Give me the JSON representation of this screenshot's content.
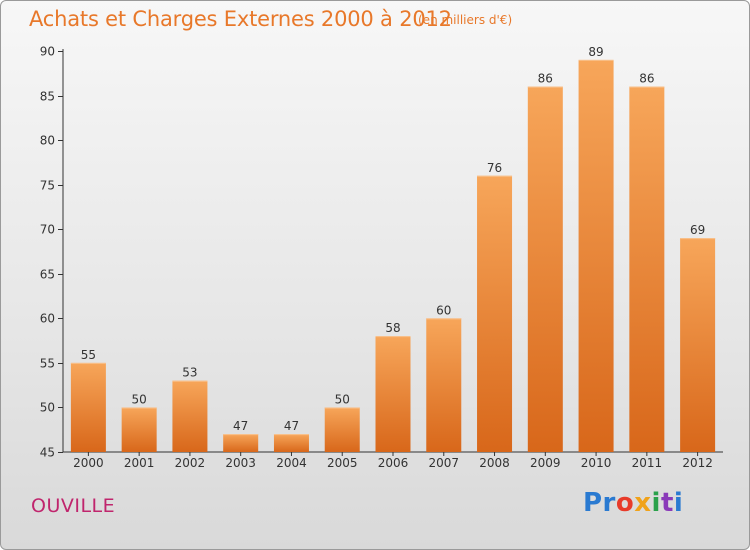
{
  "header": {
    "title": "Achats et Charges Externes 2000 à 2012",
    "unit": "(en milliers d'€)"
  },
  "footer": {
    "commune": "OUVILLE",
    "logo_parts": [
      "Pr",
      "o",
      "x",
      "i",
      "t",
      "i"
    ]
  },
  "colors": {
    "accent": "#e8782a",
    "commune": "#c0256d",
    "bar_top": "#f7a65a",
    "bar_bottom": "#d8671a"
  },
  "chart_data": {
    "type": "bar",
    "title": "Achats et Charges Externes 2000 à 2012",
    "subtitle": "(en milliers d'€)",
    "categories": [
      "2000",
      "2001",
      "2002",
      "2003",
      "2004",
      "2005",
      "2006",
      "2007",
      "2008",
      "2009",
      "2010",
      "2011",
      "2012"
    ],
    "values": [
      55,
      50,
      53,
      47,
      47,
      50,
      58,
      60,
      76,
      86,
      89,
      86,
      69
    ],
    "ylim": [
      45,
      90
    ],
    "yticks": [
      45,
      50,
      55,
      60,
      65,
      70,
      75,
      80,
      85,
      90
    ],
    "grid": false,
    "legend": "none"
  }
}
